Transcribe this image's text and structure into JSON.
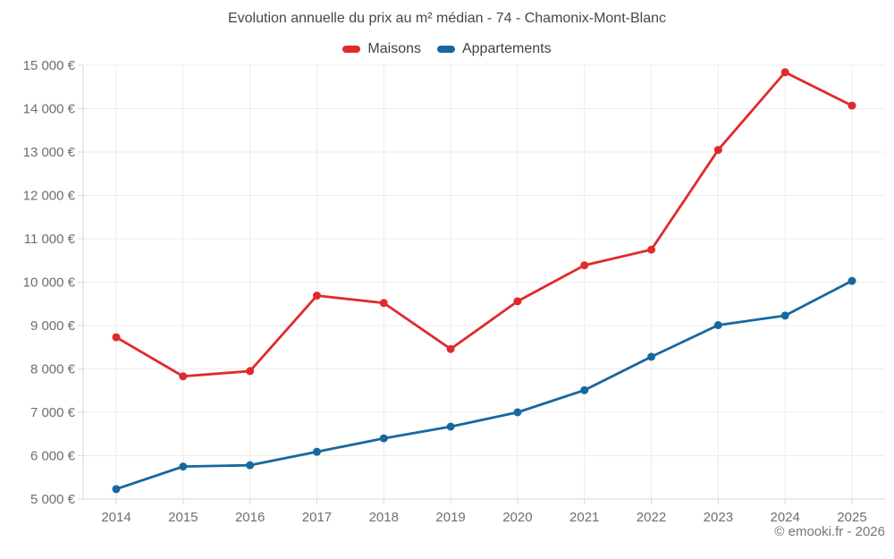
{
  "chart": {
    "title": "Evolution annuelle du prix au m² médian - 74 - Chamonix-Mont-Blanc"
  },
  "footer": {
    "credit": "© emooki.fr - 2026"
  },
  "chart_data": {
    "type": "line",
    "title": "Evolution annuelle du prix au m² médian - 74 - Chamonix-Mont-Blanc",
    "categories": [
      "2014",
      "2015",
      "2016",
      "2017",
      "2018",
      "2019",
      "2020",
      "2021",
      "2022",
      "2023",
      "2024",
      "2025"
    ],
    "series": [
      {
        "name": "Maisons",
        "color": "#e02a2b",
        "values": [
          8730,
          7830,
          7950,
          9690,
          9520,
          8460,
          9560,
          10390,
          10750,
          13050,
          14840,
          14070
        ]
      },
      {
        "name": "Appartements",
        "color": "#17689f",
        "values": [
          5230,
          5750,
          5780,
          6090,
          6400,
          6670,
          7000,
          7510,
          8280,
          9010,
          9230,
          10030
        ]
      }
    ],
    "xlabel": "",
    "ylabel": "",
    "ylim": [
      5000,
      15000
    ],
    "y_step": 1000,
    "y_tick_suffix": " €",
    "grid": true,
    "legend_position": "top",
    "colors": {
      "gridline": "#ececec",
      "axis_line": "#d6d6d6",
      "tick": "#d9d9d9",
      "tick_label": "#6e6e6e"
    }
  }
}
